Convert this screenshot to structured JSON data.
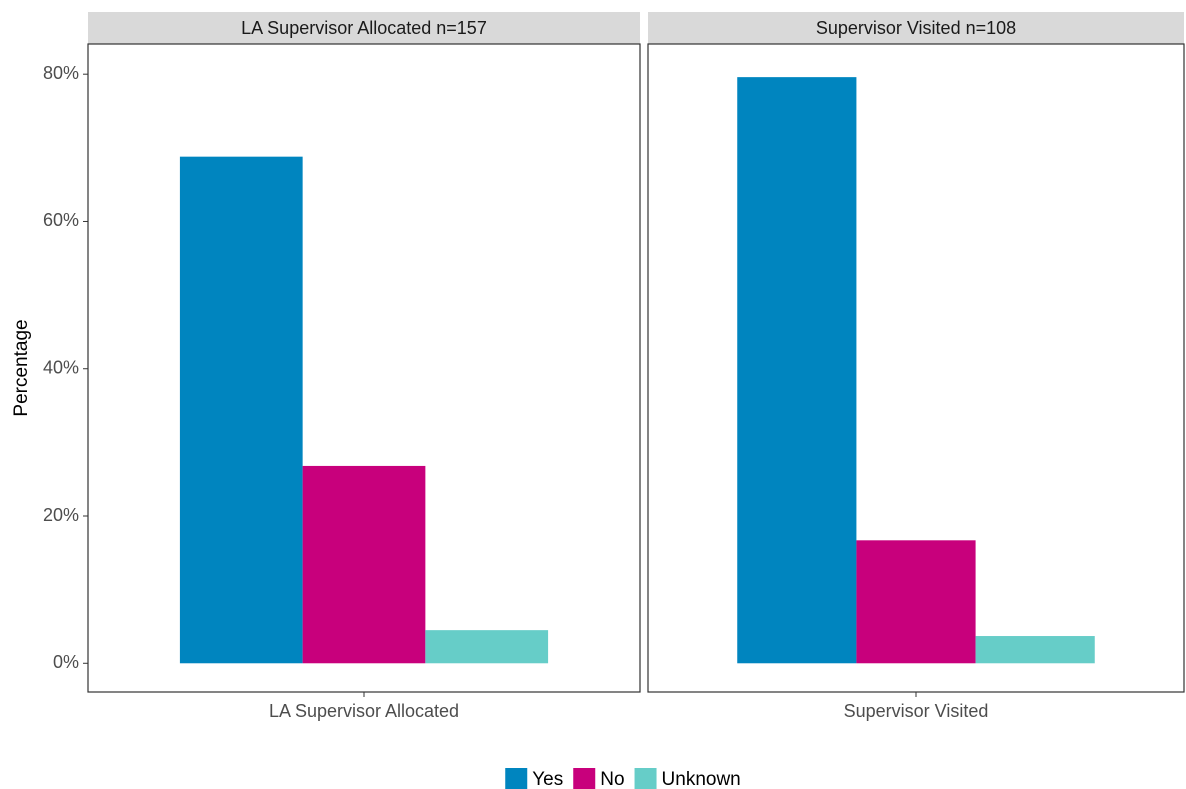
{
  "chart_data": {
    "type": "bar",
    "ylabel": "Percentage",
    "ylim": [
      -3.9,
      84.1
    ],
    "yticks": [
      {
        "value": 0,
        "label": "0%"
      },
      {
        "value": 20,
        "label": "20%"
      },
      {
        "value": 40,
        "label": "40%"
      },
      {
        "value": 60,
        "label": "60%"
      },
      {
        "value": 80,
        "label": "80%"
      }
    ],
    "series": [
      {
        "name": "Yes",
        "color": "#0085bf"
      },
      {
        "name": "No",
        "color": "#c8007c"
      },
      {
        "name": "Unknown",
        "color": "#66cdc8"
      }
    ],
    "panels": [
      {
        "title": "LA Supervisor Allocated n=157",
        "categories": [
          "LA Supervisor Allocated"
        ],
        "values": [
          68.8,
          26.8,
          4.5
        ]
      },
      {
        "title": "Supervisor Visited n=108",
        "categories": [
          "Supervisor Visited"
        ],
        "values": [
          79.6,
          16.7,
          3.7
        ]
      }
    ]
  }
}
